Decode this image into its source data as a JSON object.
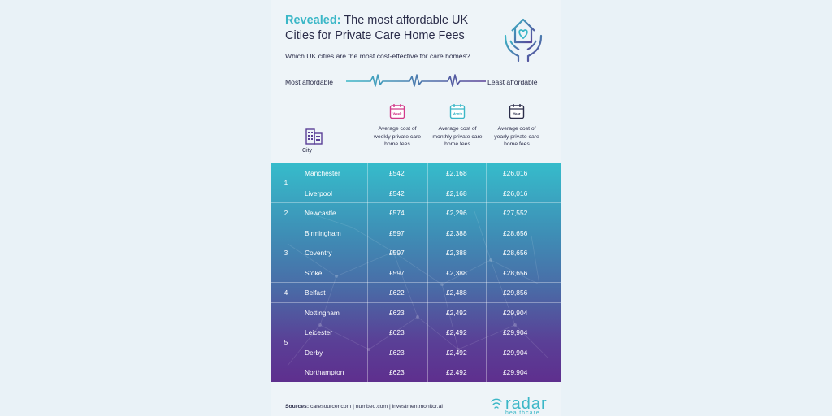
{
  "title": {
    "accent": "Revealed:",
    "line1_rest": " The most affordable UK",
    "line2": "Cities for Private Care Home Fees"
  },
  "subtitle": "Which UK cities are the most cost-effective for care homes?",
  "scale": {
    "left": "Most affordable",
    "right": "Least affordable"
  },
  "headers": {
    "city": "City",
    "week": {
      "badge": "Week",
      "text": "Average cost of weekly private care home fees"
    },
    "month": {
      "badge": "Month",
      "text": "Average cost of monthly private care home fees"
    },
    "year": {
      "badge": "Year",
      "text": "Average cost of yearly private care home fees"
    }
  },
  "ranks": [
    "1",
    "2",
    "3",
    "4",
    "5"
  ],
  "rows": [
    {
      "city": "Manchester",
      "week": "£542",
      "month": "£2,168",
      "year": "£26,016"
    },
    {
      "city": "Liverpool",
      "week": "£542",
      "month": "£2,168",
      "year": "£26,016"
    },
    {
      "city": "Newcastle",
      "week": "£574",
      "month": "£2,296",
      "year": "£27,552"
    },
    {
      "city": "Birmingham",
      "week": "£597",
      "month": "£2,388",
      "year": "£28,656"
    },
    {
      "city": "Coventry",
      "week": "£597",
      "month": "£2,388",
      "year": "£28,656"
    },
    {
      "city": "Stoke",
      "week": "£597",
      "month": "£2,388",
      "year": "£28,656"
    },
    {
      "city": "Belfast",
      "week": "£622",
      "month": "£2,488",
      "year": "£29,856"
    },
    {
      "city": "Nottingham",
      "week": "£623",
      "month": "£2,492",
      "year": "£29,904"
    },
    {
      "city": "Leicester",
      "week": "£623",
      "month": "£2,492",
      "year": "£29,904"
    },
    {
      "city": "Derby",
      "week": "£623",
      "month": "£2,492",
      "year": "£29,904"
    },
    {
      "city": "Northampton",
      "week": "£623",
      "month": "£2,492",
      "year": "£29,904"
    }
  ],
  "sources": {
    "label": "Sources:",
    "text": " caresourcer.com | numbeo.com | investmentmonitor.ai"
  },
  "logo": {
    "name": "radar",
    "sub": "healthcare"
  },
  "colors": {
    "accent": "#3bb7c7",
    "text": "#2b2d4a",
    "week": "#d23a8a",
    "month": "#3bb7c7",
    "year": "#2b2d4a"
  }
}
